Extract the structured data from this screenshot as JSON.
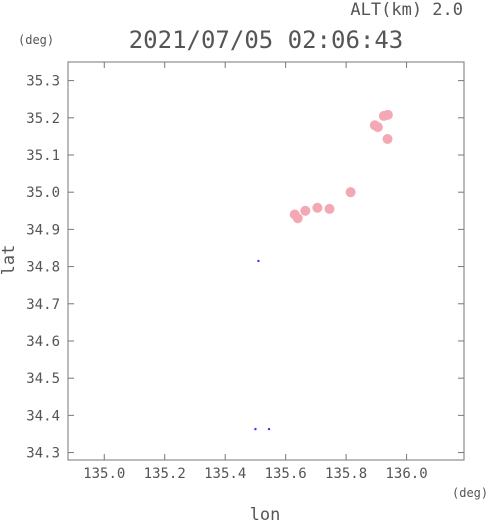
{
  "chart_data": {
    "type": "scatter",
    "title": "2021/07/05 02:06:43",
    "subtitle": "ALT(km) 2.0",
    "xlabel": "lon",
    "ylabel": "lat",
    "x_unit": "(deg)",
    "y_unit": "(deg)",
    "xlim": [
      134.88,
      136.19
    ],
    "ylim": [
      34.28,
      35.35
    ],
    "x_ticks": [
      "135.0",
      "135.2",
      "135.4",
      "135.6",
      "135.8",
      "136.0"
    ],
    "y_ticks": [
      "34.3",
      "34.4",
      "34.5",
      "34.6",
      "34.7",
      "34.8",
      "34.9",
      "35.0",
      "35.1",
      "35.2",
      "35.3"
    ],
    "grid": false,
    "colors": {
      "blob": "#f4a8b4",
      "dot": "#3a3aff",
      "axis": "#777777",
      "text": "#555555"
    },
    "points": [
      {
        "x": 135.5,
        "y": 34.363,
        "kind": "dot"
      },
      {
        "x": 135.545,
        "y": 34.363,
        "kind": "dot"
      },
      {
        "x": 135.51,
        "y": 34.815,
        "kind": "dot"
      },
      {
        "x": 135.63,
        "y": 34.94,
        "kind": "blob"
      },
      {
        "x": 135.64,
        "y": 34.93,
        "kind": "blob"
      },
      {
        "x": 135.665,
        "y": 34.95,
        "kind": "blob"
      },
      {
        "x": 135.705,
        "y": 34.958,
        "kind": "blob"
      },
      {
        "x": 135.745,
        "y": 34.955,
        "kind": "blob"
      },
      {
        "x": 135.815,
        "y": 35.0,
        "kind": "blob"
      },
      {
        "x": 135.895,
        "y": 35.18,
        "kind": "blob"
      },
      {
        "x": 135.905,
        "y": 35.175,
        "kind": "blob"
      },
      {
        "x": 135.925,
        "y": 35.205,
        "kind": "blob"
      },
      {
        "x": 135.938,
        "y": 35.208,
        "kind": "blob"
      },
      {
        "x": 135.937,
        "y": 35.143,
        "kind": "blob"
      }
    ]
  }
}
